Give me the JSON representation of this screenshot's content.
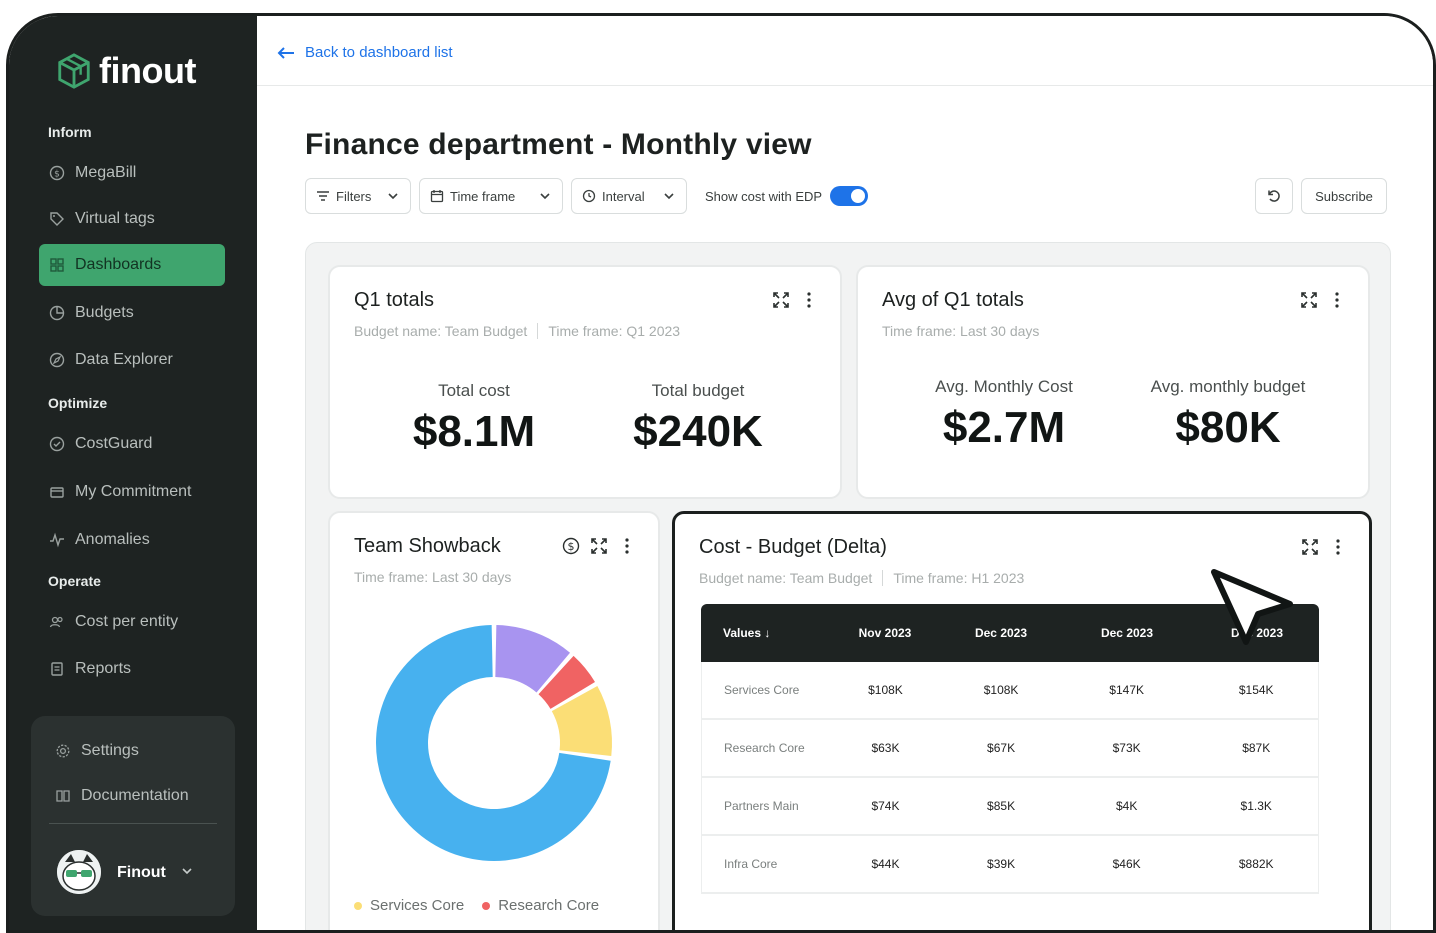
{
  "brand": {
    "name": "finout"
  },
  "sidebar": {
    "sections": {
      "inform": "Inform",
      "optimize": "Optimize",
      "operate": "Operate"
    },
    "items": [
      {
        "label": "MegaBill",
        "icon": "megabill-icon"
      },
      {
        "label": "Virtual tags",
        "icon": "tag-icon"
      },
      {
        "label": "Dashboards",
        "icon": "grid-icon",
        "active": true
      },
      {
        "label": "Budgets",
        "icon": "budget-icon"
      },
      {
        "label": "Data Explorer",
        "icon": "compass-icon"
      },
      {
        "label": "CostGuard",
        "icon": "shield-check-icon"
      },
      {
        "label": "My Commitment",
        "icon": "wallet-icon"
      },
      {
        "label": "Anomalies",
        "icon": "pulse-icon"
      },
      {
        "label": "Cost per entity",
        "icon": "users-icon"
      },
      {
        "label": "Reports",
        "icon": "report-icon"
      }
    ],
    "footer": {
      "settings": "Settings",
      "documentation": "Documentation",
      "user": "Finout"
    },
    "accent": "#3fa56e"
  },
  "header": {
    "back": "Back to dashboard list",
    "title": "Finance department - Monthly view"
  },
  "toolbar": {
    "filters": "Filters",
    "timeframe": "Time frame",
    "interval": "Interval",
    "edp_label": "Show cost with EDP",
    "edp_on": true,
    "subscribe": "Subscribe"
  },
  "cards": {
    "q1": {
      "title": "Q1 totals",
      "budget_name": "Budget name: Team Budget",
      "timeframe": "Time frame: Q1 2023",
      "stats": [
        {
          "label": "Total cost",
          "value": "$8.1M"
        },
        {
          "label": "Total budget",
          "value": "$240K"
        }
      ]
    },
    "avg": {
      "title": "Avg of Q1 totals",
      "timeframe": "Time frame: Last 30 days",
      "stats": [
        {
          "label": "Avg. Monthly Cost",
          "value": "$2.7M"
        },
        {
          "label": "Avg. monthly budget",
          "value": "$80K"
        }
      ]
    },
    "showback": {
      "title": "Team Showback",
      "timeframe": "Time frame: Last 30 days",
      "legend": [
        "Services Core",
        "Research Core"
      ]
    },
    "delta": {
      "title": "Cost - Budget (Delta)",
      "budget_name": "Budget name: Team Budget",
      "timeframe": "Time frame: H1 2023",
      "columns": [
        "Values ↓",
        "Nov 2023",
        "Dec 2023",
        "Dec 2023",
        "Dec 2023"
      ],
      "rows": [
        [
          "Services Core",
          "$108K",
          "$108K",
          "$147K",
          "$154K"
        ],
        [
          "Research Core",
          "$63K",
          "$67K",
          "$73K",
          "$87K"
        ],
        [
          "Partners Main",
          "$74K",
          "$85K",
          "$4K",
          "$1.3K"
        ],
        [
          "Infra Core",
          "$44K",
          "$39K",
          "$46K",
          "$882K"
        ]
      ]
    }
  },
  "chart_data": {
    "type": "pie",
    "donut": true,
    "slices": [
      {
        "label": "Services Core",
        "value": 70,
        "color": "#47b1ef"
      },
      {
        "label": "Research Core",
        "value": 5,
        "color": "#f06363"
      },
      {
        "label": "",
        "value": 11,
        "color": "#a894f0"
      },
      {
        "label": "",
        "value": 10,
        "color": "#fbde76"
      }
    ]
  }
}
